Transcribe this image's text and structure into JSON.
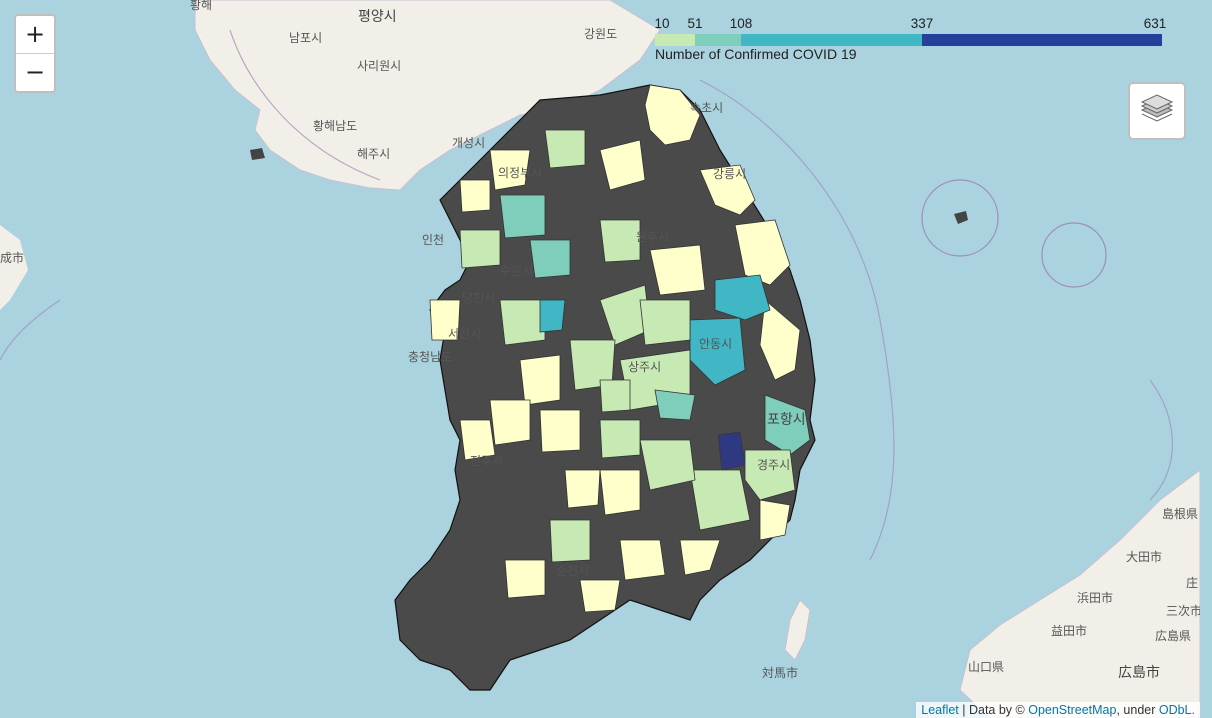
{
  "controls": {
    "zoom_in": "+",
    "zoom_out": "−",
    "layers_icon": "layers-icon"
  },
  "legend": {
    "ticks": [
      "10",
      "51",
      "108",
      "337",
      "631"
    ],
    "caption": "Number of Confirmed COVID 19",
    "colors": [
      "#c7e9b4",
      "#7fcdbb",
      "#41b6c4",
      "#2c7fb8",
      "#253494"
    ]
  },
  "attribution": {
    "leaflet": "Leaflet",
    "sep": " | Data by © ",
    "osm": "OpenStreetMap",
    "under": ", under ",
    "odbl": "ODbL."
  },
  "places": {
    "north": [
      "평양시",
      "남포시",
      "사리원시",
      "황해남도",
      "해주시",
      "개성시",
      "강원도",
      "황해"
    ],
    "south": [
      "인천",
      "의정부시",
      "수원시",
      "원주시",
      "강릉시",
      "속초시",
      "충청남도",
      "당진시",
      "서산시",
      "안동시",
      "포항시",
      "경주시",
      "상주시",
      "전주시",
      "순천시"
    ],
    "west": [
      "成市"
    ],
    "japan": [
      "島根県",
      "大田市",
      "浜田市",
      "益田市",
      "広島県",
      "広島市",
      "山口県",
      "三次市",
      "対馬市",
      "庄"
    ]
  }
}
